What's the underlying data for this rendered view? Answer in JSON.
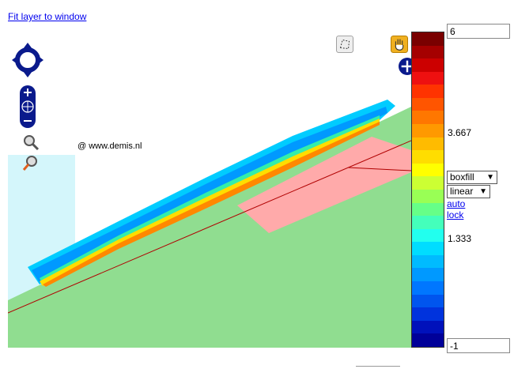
{
  "header": {
    "fit_link": "Fit layer to window"
  },
  "map": {
    "copyright": "@ www.demis.nl",
    "colors": {
      "land": "#90dd90",
      "pink": "#ffaaaa",
      "cyan": "#d4f6fb",
      "road": "#b00000"
    }
  },
  "toolbar": {
    "pan_tool_icon": "hand-icon",
    "select_tool_icon": "polygon-select-icon",
    "add_icon": "plus-icon"
  },
  "legend": {
    "max_value": "6",
    "min_value": "-1",
    "ticks": [
      "3.667",
      "1.333"
    ],
    "colors": [
      "#7a0000",
      "#a50000",
      "#cc0000",
      "#ee1010",
      "#ff3300",
      "#ff5500",
      "#ff7700",
      "#ff9900",
      "#ffbb00",
      "#ffdd00",
      "#ffff00",
      "#ccff33",
      "#99ff55",
      "#66ff88",
      "#44ffbb",
      "#22ffee",
      "#00ddff",
      "#00bbff",
      "#0099ff",
      "#0077ff",
      "#0055ee",
      "#0033dd",
      "#0011bb",
      "#000099"
    ],
    "style_select": "boxfill",
    "scale_select": "linear",
    "auto_link": "auto",
    "lock_link": "lock"
  }
}
